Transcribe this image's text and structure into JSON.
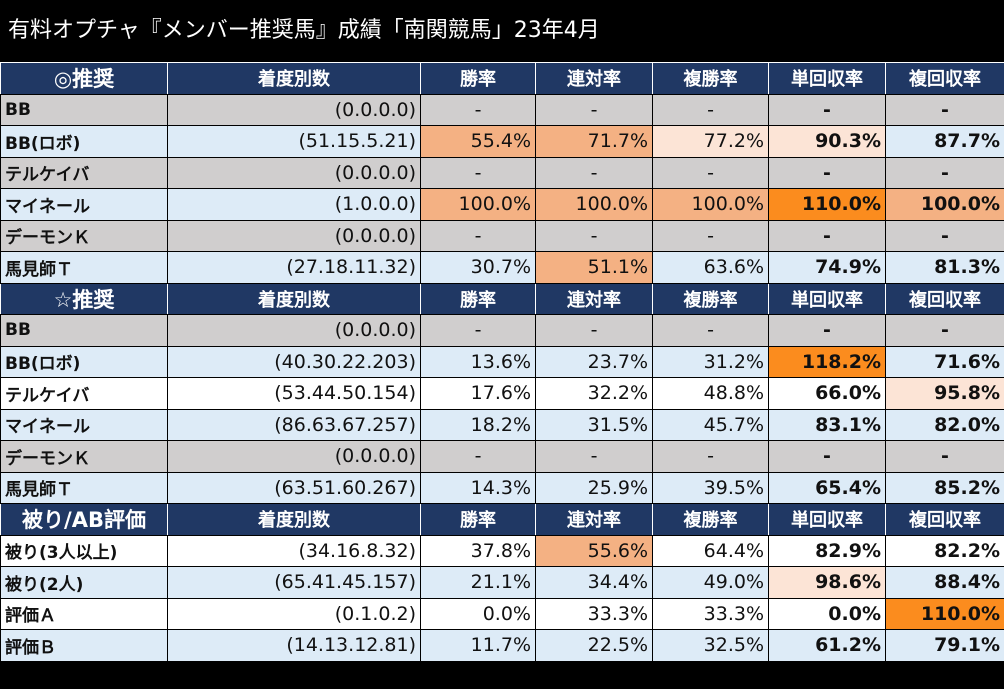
{
  "title": "有料オプチャ『メンバー推奨馬』成績「南関競馬」23年4月",
  "columns": [
    "着度別数",
    "勝率",
    "連対率",
    "複勝率",
    "単回収率",
    "複回収率"
  ],
  "sections": [
    {
      "label": "◎推奨",
      "rows": [
        {
          "name": "BB",
          "record": "(0.0.0.0)",
          "values": [
            "-",
            "-",
            "-",
            "-",
            "-"
          ],
          "bg": "gray",
          "hl": [
            "",
            "",
            "",
            "",
            ""
          ]
        },
        {
          "name": "BB(ロボ)",
          "record": "(51.15.5.21)",
          "values": [
            "55.4%",
            "71.7%",
            "77.2%",
            "90.3%",
            "87.7%"
          ],
          "bg": "blue",
          "hl": [
            "h1",
            "h1",
            "h2",
            "h2",
            ""
          ]
        },
        {
          "name": "テルケイバ",
          "record": "(0.0.0.0)",
          "values": [
            "-",
            "-",
            "-",
            "-",
            "-"
          ],
          "bg": "gray",
          "hl": [
            "",
            "",
            "",
            "",
            ""
          ]
        },
        {
          "name": "マイネール",
          "record": "(1.0.0.0)",
          "values": [
            "100.0%",
            "100.0%",
            "100.0%",
            "110.0%",
            "100.0%"
          ],
          "bg": "blue",
          "hl": [
            "h1",
            "h1",
            "h1",
            "h3",
            "h1"
          ]
        },
        {
          "name": "デーモンＫ",
          "record": "(0.0.0.0)",
          "values": [
            "-",
            "-",
            "-",
            "-",
            "-"
          ],
          "bg": "gray",
          "hl": [
            "",
            "",
            "",
            "",
            ""
          ]
        },
        {
          "name": "馬見師Ｔ",
          "record": "(27.18.11.32)",
          "values": [
            "30.7%",
            "51.1%",
            "63.6%",
            "74.9%",
            "81.3%"
          ],
          "bg": "blue",
          "hl": [
            "",
            "h1",
            "",
            "",
            ""
          ]
        }
      ]
    },
    {
      "label": "☆推奨",
      "rows": [
        {
          "name": "BB",
          "record": "(0.0.0.0)",
          "values": [
            "-",
            "-",
            "-",
            "-",
            "-"
          ],
          "bg": "gray",
          "hl": [
            "",
            "",
            "",
            "",
            ""
          ]
        },
        {
          "name": "BB(ロボ)",
          "record": "(40.30.22.203)",
          "values": [
            "13.6%",
            "23.7%",
            "31.2%",
            "118.2%",
            "71.6%"
          ],
          "bg": "blue",
          "hl": [
            "",
            "",
            "",
            "h3",
            ""
          ]
        },
        {
          "name": "テルケイバ",
          "record": "(53.44.50.154)",
          "values": [
            "17.6%",
            "32.2%",
            "48.8%",
            "66.0%",
            "95.8%"
          ],
          "bg": "white",
          "hl": [
            "",
            "",
            "",
            "",
            "h2"
          ]
        },
        {
          "name": "マイネール",
          "record": "(86.63.67.257)",
          "values": [
            "18.2%",
            "31.5%",
            "45.7%",
            "83.1%",
            "82.0%"
          ],
          "bg": "blue",
          "hl": [
            "",
            "",
            "",
            "",
            ""
          ]
        },
        {
          "name": "デーモンＫ",
          "record": "(0.0.0.0)",
          "values": [
            "-",
            "-",
            "-",
            "-",
            "-"
          ],
          "bg": "gray",
          "hl": [
            "",
            "",
            "",
            "",
            ""
          ]
        },
        {
          "name": "馬見師Ｔ",
          "record": "(63.51.60.267)",
          "values": [
            "14.3%",
            "25.9%",
            "39.5%",
            "65.4%",
            "85.2%"
          ],
          "bg": "blue",
          "hl": [
            "",
            "",
            "",
            "",
            ""
          ]
        }
      ]
    },
    {
      "label": "被り/AB評価",
      "rows": [
        {
          "name": "被り(3人以上)",
          "record": "(34.16.8.32)",
          "values": [
            "37.8%",
            "55.6%",
            "64.4%",
            "82.9%",
            "82.2%"
          ],
          "bg": "white",
          "hl": [
            "",
            "h1",
            "",
            "",
            ""
          ]
        },
        {
          "name": "被り(2人)",
          "record": "(65.41.45.157)",
          "values": [
            "21.1%",
            "34.4%",
            "49.0%",
            "98.6%",
            "88.4%"
          ],
          "bg": "blue",
          "hl": [
            "",
            "",
            "",
            "h2",
            ""
          ]
        },
        {
          "name": "評価Ａ",
          "record": "(0.1.0.2)",
          "values": [
            "0.0%",
            "33.3%",
            "33.3%",
            "0.0%",
            "110.0%"
          ],
          "bg": "white",
          "hl": [
            "",
            "",
            "",
            "",
            "h3"
          ]
        },
        {
          "name": "評価Ｂ",
          "record": "(14.13.12.81)",
          "values": [
            "11.7%",
            "22.5%",
            "32.5%",
            "61.2%",
            "79.1%"
          ],
          "bg": "blue",
          "hl": [
            "",
            "",
            "",
            "",
            ""
          ]
        }
      ]
    }
  ]
}
